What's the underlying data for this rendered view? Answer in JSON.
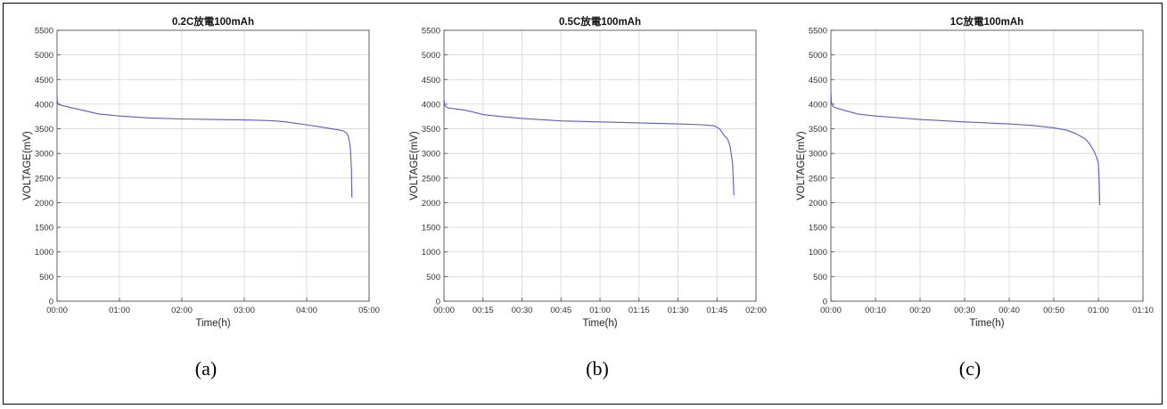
{
  "chart_data": [
    {
      "type": "line",
      "title": "0.2C放電100mAh",
      "xlabel": "Time(h)",
      "ylabel": "VOLTAGE(mV)",
      "caption": "(a)",
      "xlim": [
        0,
        300
      ],
      "ylim": [
        0,
        5500
      ],
      "grid": true,
      "line_color": "#5a5ac8",
      "xticks": [
        0,
        60,
        120,
        180,
        240,
        300
      ],
      "xtick_labels": [
        "00:00",
        "01:00",
        "02:00",
        "03:00",
        "04:00",
        "05:00"
      ],
      "yticks": [
        0,
        500,
        1000,
        1500,
        2000,
        2500,
        3000,
        3500,
        4000,
        4500,
        5000,
        5500
      ],
      "ytick_labels": [
        "0",
        "500",
        "1000",
        "1500",
        "2000",
        "2500",
        "3000",
        "3500",
        "4000",
        "4500",
        "5000",
        "5500"
      ],
      "series": [
        {
          "x": [
            0,
            0.3,
            0.6,
            1,
            2,
            5,
            10,
            15,
            20,
            30,
            40,
            60,
            90,
            120,
            150,
            180,
            200,
            210,
            220,
            230,
            240,
            250,
            270,
            275,
            278,
            280,
            281,
            282,
            283,
            283.5
          ],
          "y": [
            4150,
            4050,
            4030,
            4000,
            3990,
            3970,
            3950,
            3920,
            3900,
            3850,
            3800,
            3760,
            3720,
            3700,
            3690,
            3680,
            3670,
            3660,
            3640,
            3610,
            3580,
            3550,
            3480,
            3460,
            3420,
            3350,
            3250,
            3100,
            2700,
            2100
          ]
        }
      ]
    },
    {
      "type": "line",
      "title": "0.5C放電100mAh",
      "xlabel": "Time(h)",
      "ylabel": "VOLTAGE(mV)",
      "caption": "(b)",
      "xlim": [
        0,
        120
      ],
      "ylim": [
        0,
        5500
      ],
      "grid": true,
      "line_color": "#5a5ac8",
      "xticks": [
        0,
        15,
        30,
        45,
        60,
        75,
        90,
        105,
        120
      ],
      "xtick_labels": [
        "00:00",
        "00:15",
        "00:30",
        "00:45",
        "01:00",
        "01:15",
        "01:30",
        "01:45",
        "02:00"
      ],
      "yticks": [
        0,
        500,
        1000,
        1500,
        2000,
        2500,
        3000,
        3500,
        4000,
        4500,
        5000,
        5500
      ],
      "ytick_labels": [
        "0",
        "500",
        "1000",
        "1500",
        "2000",
        "2500",
        "3000",
        "3500",
        "4000",
        "4500",
        "5000",
        "5500"
      ],
      "series": [
        {
          "x": [
            0,
            0.2,
            0.5,
            1,
            2,
            5,
            8,
            12,
            15,
            20,
            30,
            45,
            60,
            75,
            90,
            100,
            104,
            106,
            107,
            108,
            109,
            110,
            111,
            111.5
          ],
          "y": [
            4100,
            4000,
            3960,
            3940,
            3920,
            3900,
            3880,
            3830,
            3790,
            3760,
            3710,
            3660,
            3640,
            3620,
            3600,
            3580,
            3560,
            3500,
            3420,
            3350,
            3300,
            3150,
            2800,
            2150
          ]
        }
      ]
    },
    {
      "type": "line",
      "title": "1C放電100mAh",
      "xlabel": "Time(h)",
      "ylabel": "VOLTAGE(mV)",
      "caption": "(c)",
      "xlim": [
        0,
        70
      ],
      "ylim": [
        0,
        5500
      ],
      "grid": true,
      "line_color": "#5a5ac8",
      "xticks": [
        0,
        10,
        20,
        30,
        40,
        50,
        60,
        70
      ],
      "xtick_labels": [
        "00:00",
        "00:10",
        "00:20",
        "00:30",
        "00:40",
        "00:50",
        "01:00",
        "01:10"
      ],
      "yticks": [
        0,
        500,
        1000,
        1500,
        2000,
        2500,
        3000,
        3500,
        4000,
        4500,
        5000,
        5500
      ],
      "ytick_labels": [
        "0",
        "500",
        "1000",
        "1500",
        "2000",
        "2500",
        "3000",
        "3500",
        "4000",
        "4500",
        "5000",
        "5500"
      ],
      "series": [
        {
          "x": [
            0,
            0.1,
            0.3,
            0.6,
            1,
            2,
            4,
            6,
            10,
            20,
            30,
            40,
            45,
            50,
            53,
            55,
            57,
            58,
            59,
            59.5,
            60,
            60.2,
            60.3
          ],
          "y": [
            4250,
            4050,
            3980,
            3950,
            3930,
            3900,
            3850,
            3800,
            3760,
            3690,
            3640,
            3600,
            3570,
            3520,
            3470,
            3400,
            3300,
            3200,
            3050,
            2950,
            2800,
            2400,
            1950
          ]
        }
      ]
    }
  ]
}
